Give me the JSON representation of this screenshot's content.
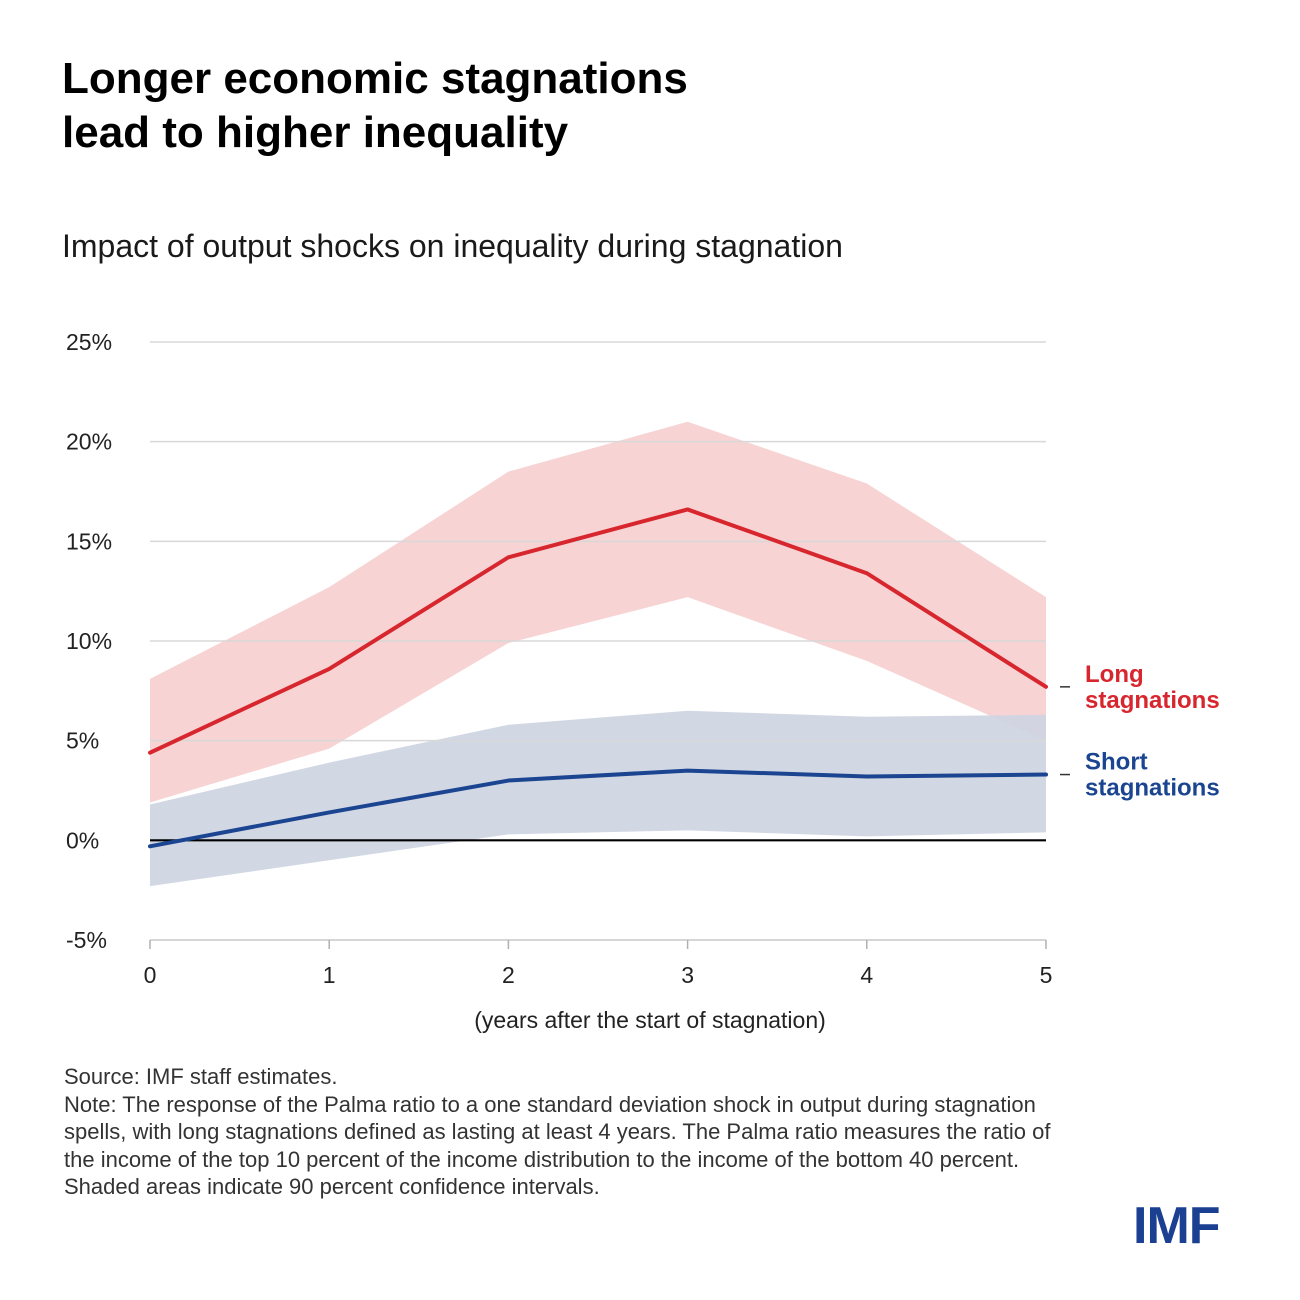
{
  "title": {
    "line1": "Longer economic stagnations",
    "line2": "lead to higher inequality"
  },
  "subtitle": "Impact of output shocks on inequality during stagnation",
  "chart_data": {
    "type": "line",
    "title": "Impact of output shocks on inequality during stagnation",
    "xlabel": "(years after the start of stagnation)",
    "ylabel": "",
    "x": [
      0,
      1,
      2,
      3,
      4,
      5
    ],
    "x_tick_labels": [
      "0",
      "1",
      "2",
      "3",
      "4",
      "5"
    ],
    "ylim": [
      -5,
      25
    ],
    "y_ticks": [
      -5,
      0,
      5,
      10,
      15,
      20,
      25
    ],
    "y_tick_labels": [
      "-5%",
      "0%",
      "5%",
      "10%",
      "15%",
      "20%",
      "25%"
    ],
    "grid": true,
    "series": [
      {
        "name": "Long stagnations",
        "label_line1": "Long",
        "label_line2": "stagnations",
        "color": "#d7262e",
        "band_color": "#f7d3d3",
        "values": [
          4.4,
          8.6,
          14.2,
          16.6,
          13.4,
          7.7
        ],
        "lower": [
          1.9,
          4.6,
          9.9,
          12.2,
          9.0,
          5.0
        ],
        "upper": [
          8.1,
          12.7,
          18.5,
          21.0,
          17.9,
          12.2
        ]
      },
      {
        "name": "Short stagnations",
        "label_line1": "Short",
        "label_line2": "stagnations",
        "color": "#1b4591",
        "band_color": "#ced4e2",
        "values": [
          -0.3,
          1.4,
          3.0,
          3.5,
          3.2,
          3.3
        ],
        "lower": [
          -2.3,
          -1.0,
          0.3,
          0.5,
          0.2,
          0.4
        ],
        "upper": [
          1.8,
          3.9,
          5.8,
          6.5,
          6.2,
          6.3
        ]
      }
    ]
  },
  "footnote": {
    "source": "Source: IMF staff estimates.",
    "note": "Note: The response of the Palma ratio to a one standard deviation shock in output during stagnation spells, with long stagnations defined as lasting at least 4 years. The Palma ratio measures the ratio of the income of the top 10 percent of the income distribution to the income of the bottom 40 percent. Shaded areas indicate 90 percent confidence intervals."
  },
  "logo": "IMF"
}
